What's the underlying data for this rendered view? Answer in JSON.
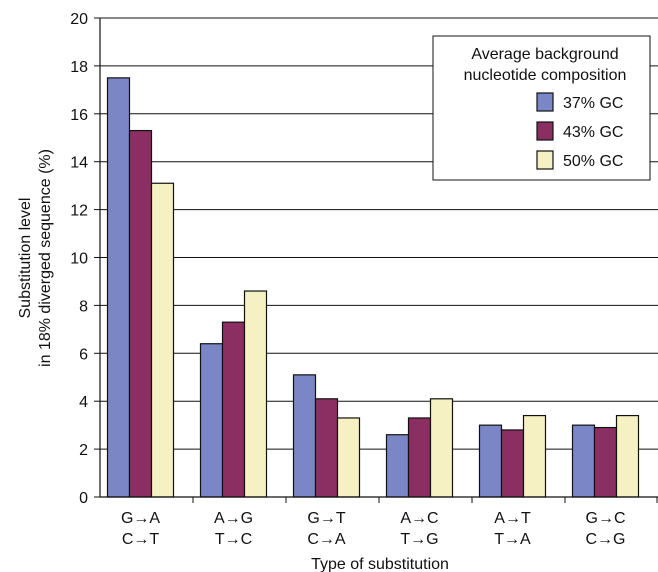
{
  "chart_data": {
    "type": "bar",
    "title": "",
    "xlabel": "Type of substitution",
    "ylabel_lines": [
      "Substitution level",
      "in 18% diverged sequence (%)"
    ],
    "ylim": [
      0,
      20
    ],
    "yticks": [
      0,
      2,
      4,
      6,
      8,
      10,
      12,
      14,
      16,
      18,
      20
    ],
    "grid": "horizontal",
    "categories": [
      [
        "G→A",
        "C→T"
      ],
      [
        "A→G",
        "T→C"
      ],
      [
        "G→T",
        "C→A"
      ],
      [
        "A→C",
        "T→G"
      ],
      [
        "A→T",
        "T→A"
      ],
      [
        "G→C",
        "C→G"
      ]
    ],
    "series": [
      {
        "name": "37% GC",
        "color": "#7B86C6",
        "values": [
          17.5,
          6.4,
          5.1,
          2.6,
          3.0,
          3.0
        ]
      },
      {
        "name": "43% GC",
        "color": "#8B2F62",
        "values": [
          15.3,
          7.3,
          4.1,
          3.3,
          2.8,
          2.9
        ]
      },
      {
        "name": "50% GC",
        "color": "#F5F1C2",
        "values": [
          13.1,
          8.6,
          3.3,
          4.1,
          3.4,
          3.4
        ]
      }
    ],
    "legend": {
      "title_lines": [
        "Average background",
        "nucleotide composition"
      ],
      "placement": "top-right"
    }
  }
}
